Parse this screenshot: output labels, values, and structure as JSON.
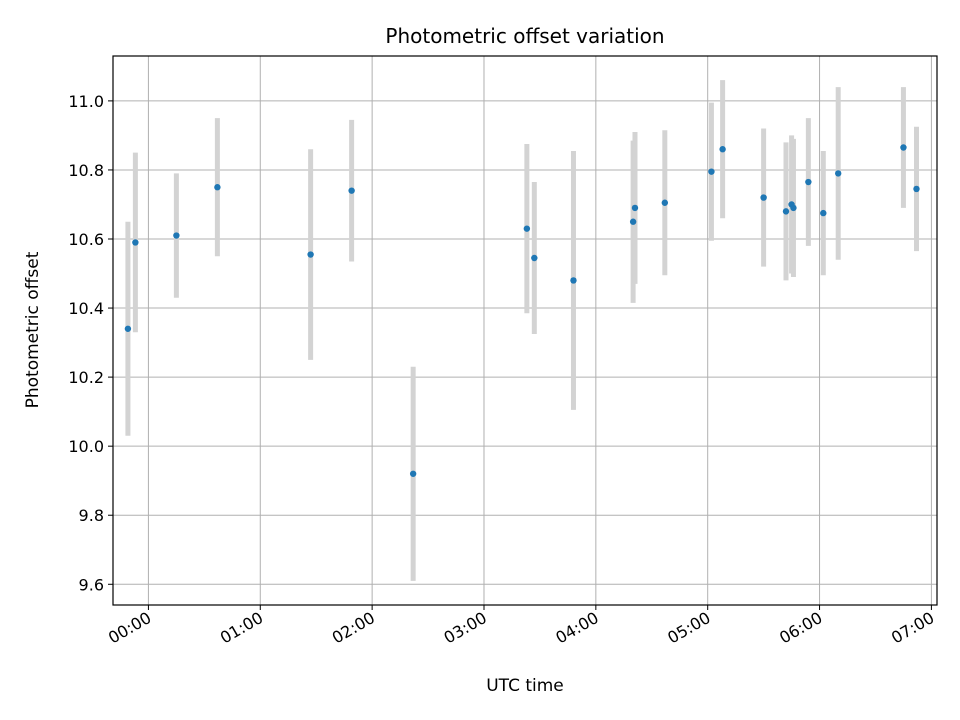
{
  "chart_data": {
    "type": "scatter",
    "title": "Photometric offset variation",
    "xlabel": "UTC time",
    "ylabel": "Photometric offset",
    "x_ticks": [
      "00:00",
      "01:00",
      "02:00",
      "03:00",
      "04:00",
      "05:00",
      "06:00",
      "07:00"
    ],
    "y_ticks": [
      "9.6",
      "9.8",
      "10.0",
      "10.2",
      "10.4",
      "10.6",
      "10.8",
      "11.0"
    ],
    "xlim": [
      "-00:19",
      "07:03"
    ],
    "ylim": [
      9.54,
      11.13
    ],
    "grid": true,
    "errorbar_color": "#d3d3d3",
    "point_color": "#1f77b4",
    "points": [
      {
        "x": "-00:11",
        "y": 10.34,
        "yerr": 0.31
      },
      {
        "x": "-00:07",
        "y": 10.59,
        "yerr": 0.26
      },
      {
        "x": "00:15",
        "y": 10.61,
        "yerr": 0.18
      },
      {
        "x": "00:37",
        "y": 10.75,
        "yerr": 0.2
      },
      {
        "x": "01:27",
        "y": 10.555,
        "yerr": 0.305
      },
      {
        "x": "01:49",
        "y": 10.74,
        "yerr": 0.205
      },
      {
        "x": "02:22",
        "y": 9.92,
        "yerr": 0.31
      },
      {
        "x": "03:23",
        "y": 10.63,
        "yerr": 0.245
      },
      {
        "x": "03:27",
        "y": 10.545,
        "yerr": 0.22
      },
      {
        "x": "03:48",
        "y": 10.48,
        "yerr": 0.375
      },
      {
        "x": "04:20",
        "y": 10.65,
        "yerr": 0.235
      },
      {
        "x": "04:21",
        "y": 10.69,
        "yerr": 0.22
      },
      {
        "x": "04:37",
        "y": 10.705,
        "yerr": 0.21
      },
      {
        "x": "05:02",
        "y": 10.795,
        "yerr": 0.2
      },
      {
        "x": "05:08",
        "y": 10.86,
        "yerr": 0.2
      },
      {
        "x": "05:30",
        "y": 10.72,
        "yerr": 0.2
      },
      {
        "x": "05:42",
        "y": 10.68,
        "yerr": 0.2
      },
      {
        "x": "05:45",
        "y": 10.7,
        "yerr": 0.2
      },
      {
        "x": "05:46",
        "y": 10.69,
        "yerr": 0.2
      },
      {
        "x": "05:54",
        "y": 10.765,
        "yerr": 0.185
      },
      {
        "x": "06:02",
        "y": 10.675,
        "yerr": 0.18
      },
      {
        "x": "06:10",
        "y": 10.79,
        "yerr": 0.25
      },
      {
        "x": "06:45",
        "y": 10.865,
        "yerr": 0.175
      },
      {
        "x": "06:52",
        "y": 10.745,
        "yerr": 0.18
      }
    ]
  }
}
